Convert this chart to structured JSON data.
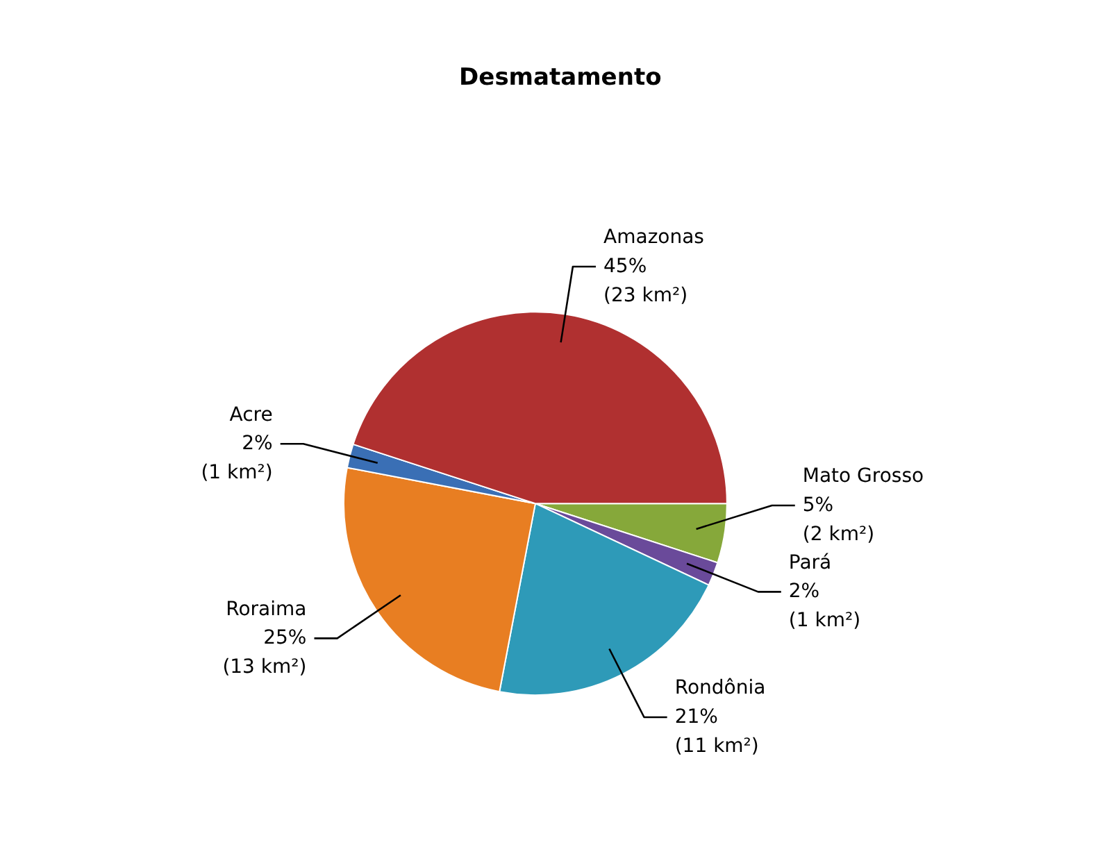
{
  "chart_data": {
    "type": "pie",
    "title": "Desmatamento",
    "categories": [
      "Mato Grosso",
      "Pará",
      "Rondônia",
      "Roraima",
      "Acre",
      "Amazonas"
    ],
    "values": [
      5,
      2,
      21,
      25,
      2,
      45
    ],
    "value_labels": [
      "5%\n(2 km²)",
      "2%\n(1 km²)",
      "21%\n(11 km²)",
      "25%\n(13 km²)",
      "2%\n(1 km²)",
      "45%\n(23 km²)"
    ],
    "colors": [
      "#86a83a",
      "#6a4a9a",
      "#2e9ab8",
      "#e87e22",
      "#3a6fb5",
      "#b03030"
    ]
  }
}
